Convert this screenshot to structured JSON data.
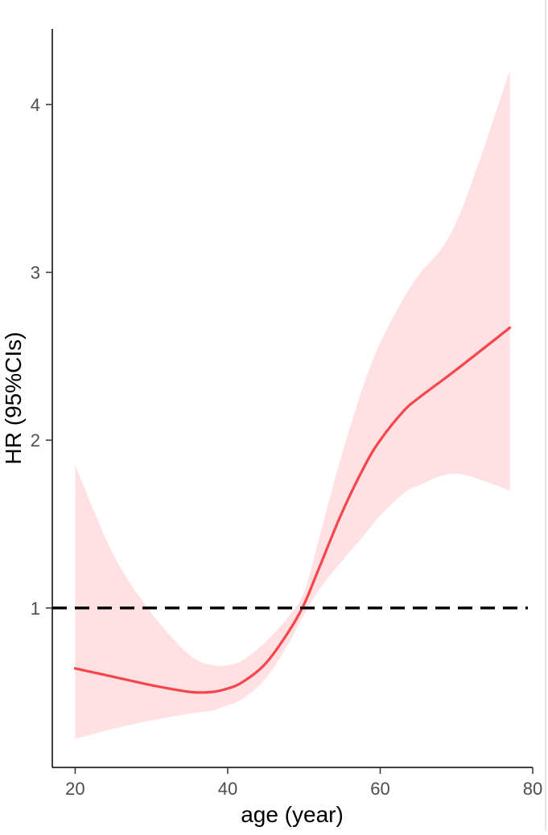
{
  "chart_data": {
    "type": "line",
    "title": "",
    "xlabel": "age (year)",
    "ylabel": "HR (95%CIs)",
    "xlim": [
      17,
      80
    ],
    "ylim": [
      0.05,
      4.45
    ],
    "xticks": [
      20,
      40,
      60,
      80
    ],
    "yticks": [
      1,
      2,
      3,
      4
    ],
    "grid": false,
    "legend": "none",
    "reference_line": {
      "y": 1,
      "style": "dashed",
      "color": "#000000"
    },
    "colors": {
      "line": "#f8454b",
      "band": "#ffe0e3"
    },
    "series": [
      {
        "x": [
          20,
          25,
          30,
          35,
          38,
          40,
          42,
          45,
          48,
          50,
          52,
          55,
          58,
          60,
          63,
          65,
          70,
          77
        ],
        "y": [
          0.64,
          0.59,
          0.54,
          0.5,
          0.5,
          0.52,
          0.56,
          0.67,
          0.86,
          1.02,
          1.24,
          1.57,
          1.85,
          2.0,
          2.17,
          2.25,
          2.42,
          2.67
        ],
        "lower": [
          0.22,
          0.28,
          0.33,
          0.37,
          0.39,
          0.42,
          0.46,
          0.58,
          0.79,
          0.96,
          1.11,
          1.28,
          1.44,
          1.55,
          1.68,
          1.73,
          1.8,
          1.7
        ],
        "upper": [
          1.85,
          1.32,
          0.97,
          0.72,
          0.66,
          0.66,
          0.69,
          0.8,
          0.95,
          1.09,
          1.42,
          1.92,
          2.35,
          2.58,
          2.84,
          2.98,
          3.3,
          4.2
        ]
      }
    ]
  }
}
